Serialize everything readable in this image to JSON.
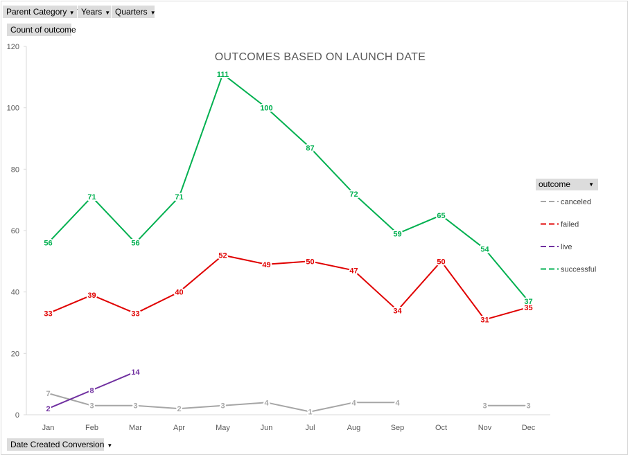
{
  "filters": {
    "parent_category": "Parent Category",
    "years": "Years",
    "quarters": "Quarters",
    "value_field": "Count of outcome",
    "axis_field": "Date Created Conversion"
  },
  "legend": {
    "title": "outcome"
  },
  "chart_data": {
    "type": "line",
    "title": "OUTCOMES BASED ON LAUNCH DATE",
    "xlabel": "",
    "ylabel": "",
    "ylim": [
      0,
      120
    ],
    "yticks": [
      0,
      20,
      40,
      60,
      80,
      100,
      120
    ],
    "categories": [
      "Jan",
      "Feb",
      "Mar",
      "Apr",
      "May",
      "Jun",
      "Jul",
      "Aug",
      "Sep",
      "Oct",
      "Nov",
      "Dec"
    ],
    "legend_position": "right",
    "series": [
      {
        "name": "canceled",
        "color": "#a6a6a6",
        "values": [
          7,
          3,
          3,
          2,
          3,
          4,
          1,
          4,
          4,
          null,
          3,
          3
        ]
      },
      {
        "name": "failed",
        "color": "#e00000",
        "values": [
          33,
          39,
          33,
          40,
          52,
          49,
          50,
          47,
          34,
          50,
          31,
          35
        ]
      },
      {
        "name": "live",
        "color": "#7030a0",
        "values": [
          2,
          8,
          14,
          null,
          null,
          null,
          null,
          null,
          null,
          null,
          null,
          null
        ]
      },
      {
        "name": "successful",
        "color": "#00b050",
        "values": [
          56,
          71,
          56,
          71,
          111,
          100,
          87,
          72,
          59,
          65,
          54,
          37
        ]
      }
    ]
  }
}
